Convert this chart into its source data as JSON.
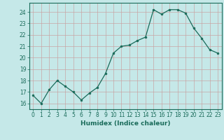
{
  "x": [
    0,
    1,
    2,
    3,
    4,
    5,
    6,
    7,
    8,
    9,
    10,
    11,
    12,
    13,
    14,
    15,
    16,
    17,
    18,
    19,
    20,
    21,
    22,
    23
  ],
  "y": [
    16.7,
    16.0,
    17.2,
    18.0,
    17.5,
    17.0,
    16.3,
    16.9,
    17.4,
    18.6,
    20.4,
    21.0,
    21.1,
    21.5,
    21.8,
    24.2,
    23.8,
    24.2,
    24.2,
    23.9,
    22.6,
    21.7,
    20.7,
    20.4
  ],
  "line_color": "#1a6b5a",
  "marker_color": "#1a6b5a",
  "bg_color": "#c5e8e8",
  "grid_color": "#b0b0b0",
  "grid_color_major": "#c8a0a0",
  "xlabel": "Humidex (Indice chaleur)",
  "xlim": [
    -0.5,
    23.5
  ],
  "ylim": [
    15.5,
    24.8
  ],
  "yticks": [
    16,
    17,
    18,
    19,
    20,
    21,
    22,
    23,
    24
  ],
  "xticks": [
    0,
    1,
    2,
    3,
    4,
    5,
    6,
    7,
    8,
    9,
    10,
    11,
    12,
    13,
    14,
    15,
    16,
    17,
    18,
    19,
    20,
    21,
    22,
    23
  ],
  "tick_color": "#1a6b5a",
  "label_fontsize": 6.5,
  "tick_fontsize": 5.5,
  "spine_color": "#1a6b5a"
}
